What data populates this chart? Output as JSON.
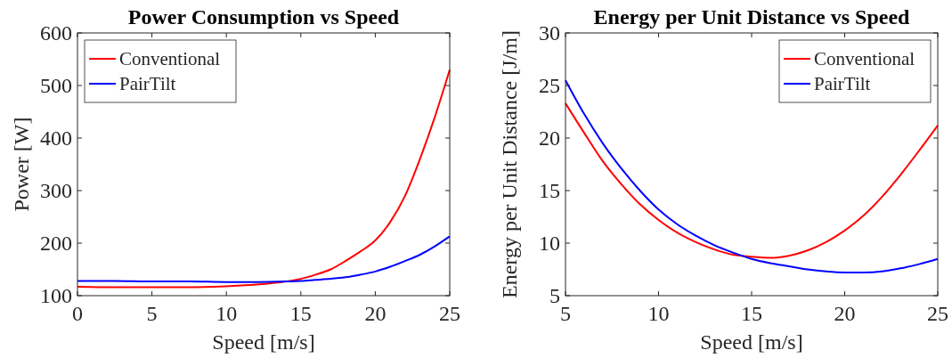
{
  "chart_data": [
    {
      "type": "line",
      "title": "Power Consumption vs Speed",
      "xlabel": "Speed [m/s]",
      "ylabel": "Power [W]",
      "x": [
        0,
        2.5,
        5,
        7.5,
        10,
        12,
        14,
        15,
        16,
        17,
        18,
        19,
        20,
        21,
        22,
        23,
        24,
        25
      ],
      "xlim": [
        0,
        25
      ],
      "xticks": [
        0,
        5,
        10,
        15,
        20,
        25
      ],
      "ylim": [
        100,
        600
      ],
      "yticks": [
        100,
        200,
        300,
        400,
        500,
        600
      ],
      "legend": "top left",
      "grid": false,
      "series": [
        {
          "name": "Conventional",
          "color": "#ff0000",
          "values": [
            117,
            116,
            116,
            116,
            118,
            121,
            127,
            132,
            140,
            150,
            166,
            184,
            205,
            240,
            290,
            360,
            440,
            530
          ]
        },
        {
          "name": "PairTilt",
          "color": "#0000ff",
          "values": [
            128,
            128,
            127,
            127,
            126,
            126,
            127,
            128,
            130,
            132,
            135,
            140,
            146,
            155,
            166,
            178,
            194,
            213
          ]
        }
      ]
    },
    {
      "type": "line",
      "title": "Energy per Unit Distance vs Speed",
      "xlabel": "Speed [m/s]",
      "ylabel": "Energy per Unit Distance [J/m]",
      "x": [
        5,
        6,
        7,
        8,
        9,
        10,
        11,
        12,
        13,
        14,
        15,
        16,
        17,
        18,
        19,
        20,
        21,
        22,
        23,
        24,
        25
      ],
      "xlim": [
        5,
        25
      ],
      "xticks": [
        5,
        10,
        15,
        20,
        25
      ],
      "ylim": [
        5,
        30
      ],
      "yticks": [
        5,
        10,
        15,
        20,
        25,
        30
      ],
      "legend": "top right",
      "grid": false,
      "series": [
        {
          "name": "Conventional",
          "color": "#ff0000",
          "values": [
            23.3,
            20.5,
            17.8,
            15.6,
            13.7,
            12.2,
            11.0,
            10.1,
            9.4,
            8.9,
            8.7,
            8.6,
            8.8,
            9.3,
            10.1,
            11.2,
            12.6,
            14.4,
            16.5,
            18.8,
            21.2
          ]
        },
        {
          "name": "PairTilt",
          "color": "#0000ff",
          "values": [
            25.5,
            22.3,
            19.5,
            17.1,
            15.0,
            13.2,
            11.8,
            10.7,
            9.8,
            9.1,
            8.5,
            8.1,
            7.8,
            7.5,
            7.3,
            7.2,
            7.2,
            7.3,
            7.6,
            8.0,
            8.5
          ]
        }
      ]
    }
  ]
}
